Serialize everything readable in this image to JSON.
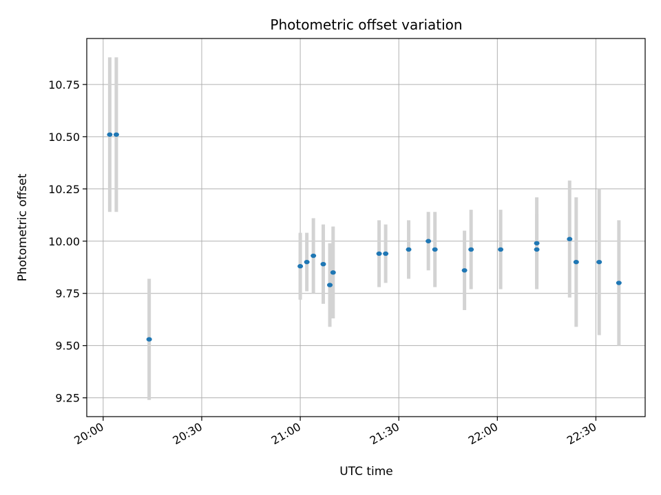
{
  "chart_data": {
    "type": "scatter",
    "title": "Photometric offset variation",
    "xlabel": "UTC time",
    "ylabel": "Photometric offset",
    "x_unit": "HH:MM",
    "xlim": [
      "19:55",
      "22:45"
    ],
    "ylim": [
      9.16,
      10.97
    ],
    "x_ticks": [
      "20:00",
      "20:30",
      "21:00",
      "21:30",
      "22:00",
      "22:30"
    ],
    "y_ticks": [
      9.25,
      9.5,
      9.75,
      10.0,
      10.25,
      10.5,
      10.75
    ],
    "y_tick_labels": [
      "9.25",
      "9.50",
      "9.75",
      "10.00",
      "10.25",
      "10.50",
      "10.75"
    ],
    "grid": true,
    "marker_color": "#1f77b4",
    "errorbar_color": "#d3d3d3",
    "points": [
      {
        "x": "20:02",
        "y": 10.51,
        "err": 0.37
      },
      {
        "x": "20:04",
        "y": 10.51,
        "err": 0.37
      },
      {
        "x": "20:14",
        "y": 9.53,
        "err": 0.29
      },
      {
        "x": "21:00",
        "y": 9.88,
        "err": 0.16
      },
      {
        "x": "21:02",
        "y": 9.9,
        "err": 0.14
      },
      {
        "x": "21:04",
        "y": 9.93,
        "err": 0.18
      },
      {
        "x": "21:07",
        "y": 9.89,
        "err": 0.19
      },
      {
        "x": "21:09",
        "y": 9.79,
        "err": 0.2
      },
      {
        "x": "21:10",
        "y": 9.85,
        "err": 0.22
      },
      {
        "x": "21:24",
        "y": 9.94,
        "err": 0.16
      },
      {
        "x": "21:26",
        "y": 9.94,
        "err": 0.14
      },
      {
        "x": "21:33",
        "y": 9.96,
        "err": 0.14
      },
      {
        "x": "21:39",
        "y": 10.0,
        "err": 0.14
      },
      {
        "x": "21:41",
        "y": 9.96,
        "err": 0.18
      },
      {
        "x": "21:50",
        "y": 9.86,
        "err": 0.19
      },
      {
        "x": "21:52",
        "y": 9.96,
        "err": 0.19
      },
      {
        "x": "22:01",
        "y": 9.96,
        "err": 0.19
      },
      {
        "x": "22:12",
        "y": 9.99,
        "err": 0.22
      },
      {
        "x": "22:12",
        "y": 9.96,
        "err": 0.17
      },
      {
        "x": "22:22",
        "y": 10.01,
        "err": 0.28
      },
      {
        "x": "22:24",
        "y": 9.9,
        "err": 0.31
      },
      {
        "x": "22:31",
        "y": 9.9,
        "err": 0.35
      },
      {
        "x": "22:37",
        "y": 9.8,
        "err": 0.3
      }
    ]
  }
}
